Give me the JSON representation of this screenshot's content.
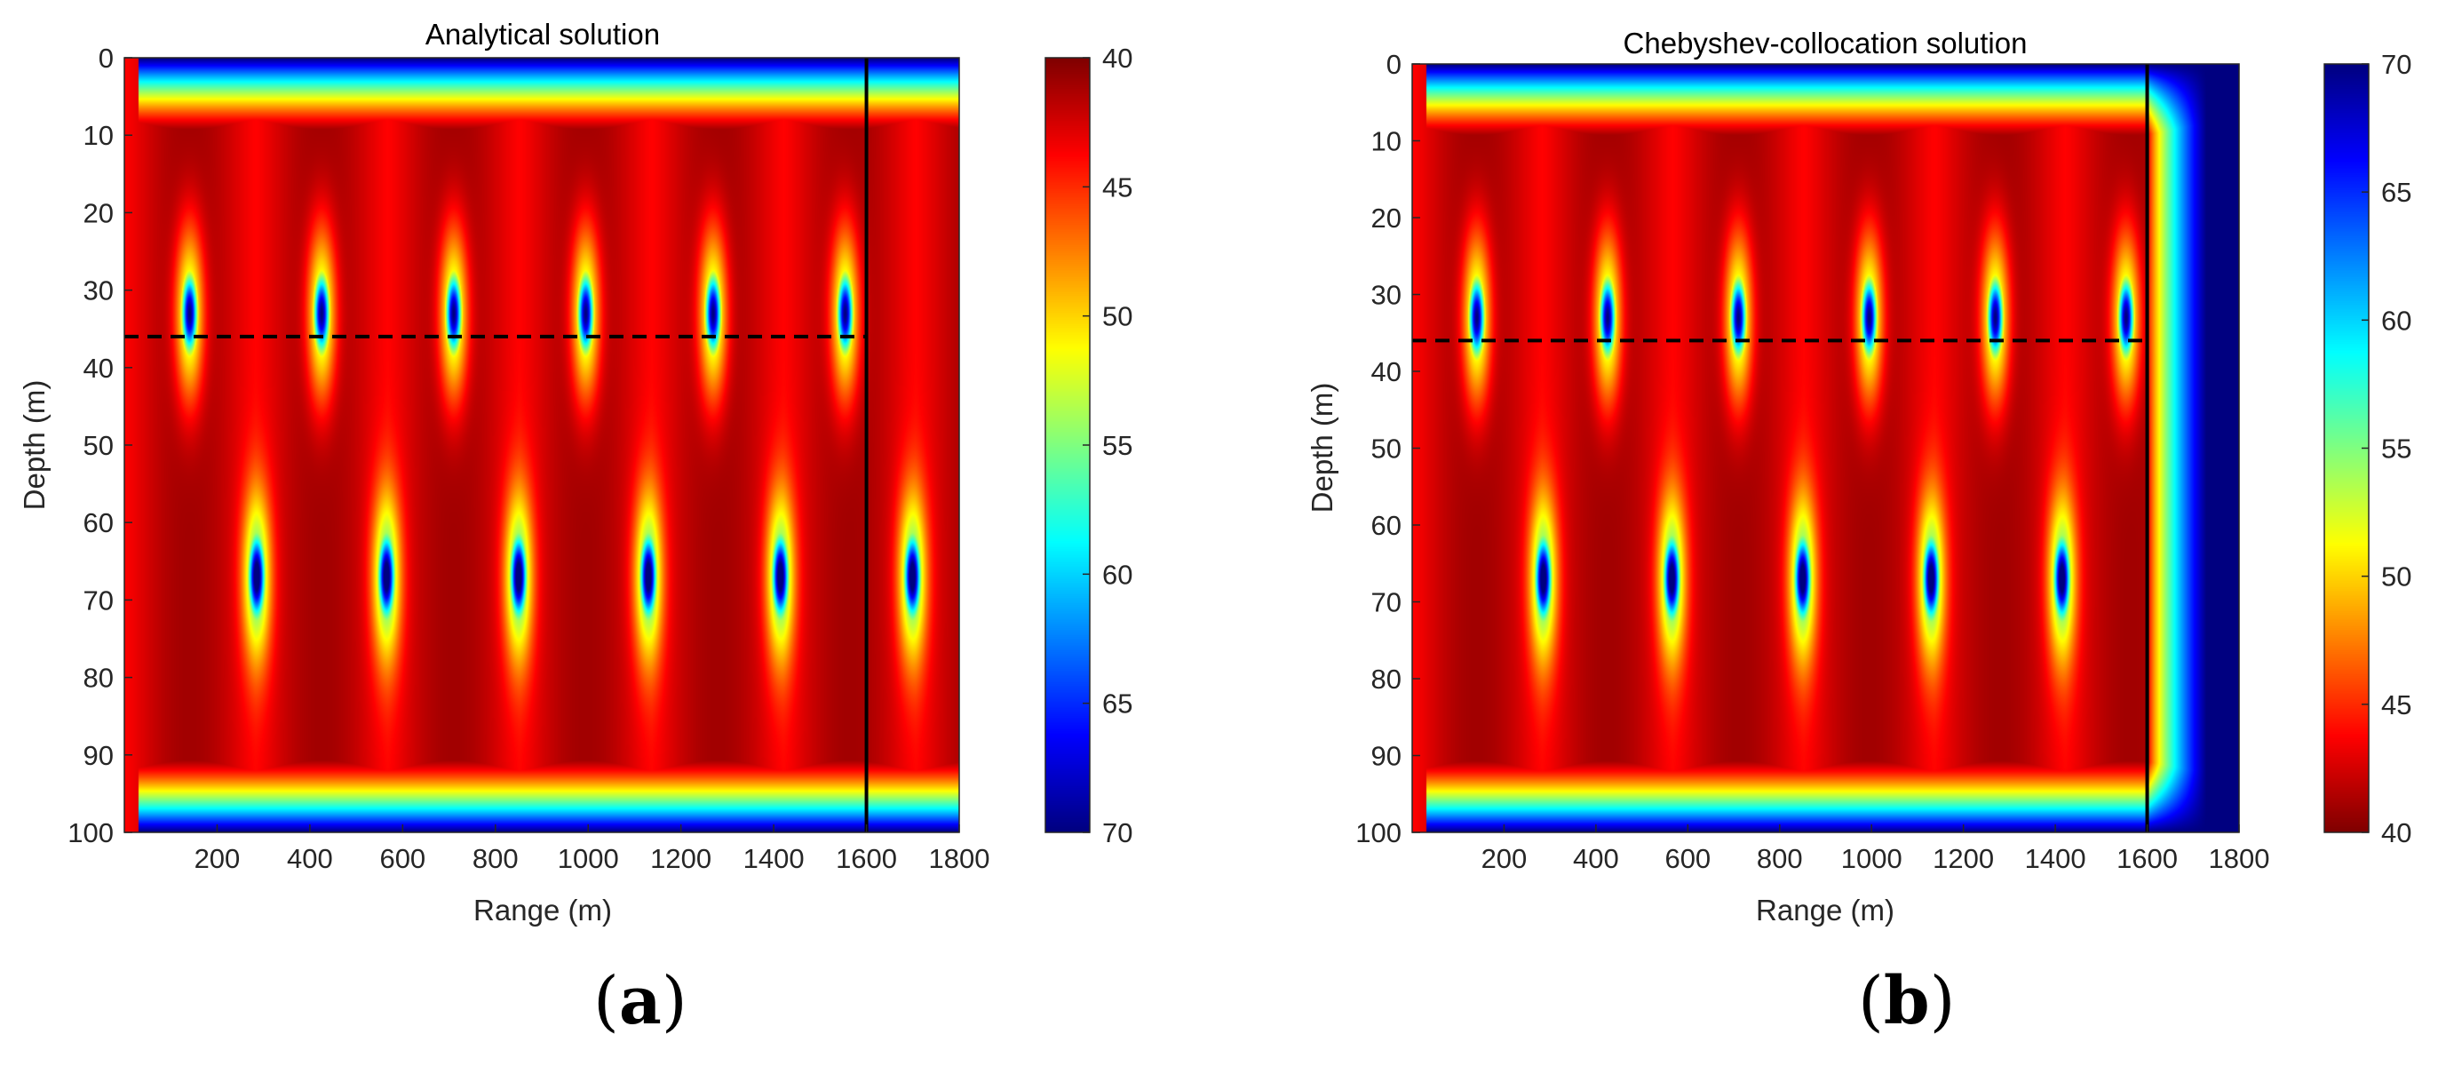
{
  "figure": {
    "panels": [
      {
        "label_open": "(",
        "letter": "a",
        "label_close": ")"
      },
      {
        "label_open": "(",
        "letter": "b",
        "label_close": ")"
      }
    ]
  },
  "colormap": "jet",
  "chart_data": [
    {
      "type": "heatmap",
      "title": "Analytical solution",
      "xlabel": "Range (m)",
      "ylabel": "Depth (m)",
      "xlim": [
        0,
        1800
      ],
      "ylim": [
        0,
        100
      ],
      "y_reversed": true,
      "x_ticks": [
        200,
        400,
        600,
        800,
        1000,
        1200,
        1400,
        1600,
        1800
      ],
      "y_ticks": [
        0,
        10,
        20,
        30,
        40,
        50,
        60,
        70,
        80,
        90,
        100
      ],
      "colorbar": {
        "ticks": [
          40,
          45,
          50,
          55,
          60,
          65,
          70
        ],
        "reversed_top_to_bottom": false,
        "top": 40,
        "bottom": 70
      },
      "lines": [
        {
          "style": "solid",
          "x": 1600,
          "y_range": [
            0,
            100
          ]
        },
        {
          "style": "dashed",
          "y": 36,
          "x_range": [
            0,
            1600
          ]
        }
      ],
      "field": {
        "source_depths": [
          33,
          67
        ],
        "null_ranges_shallow": [
          140,
          425,
          710,
          995,
          1270,
          1555
        ],
        "null_ranges_deep": [
          285,
          565,
          850,
          1130,
          1415,
          1700
        ],
        "pml_start": null
      }
    },
    {
      "type": "heatmap",
      "title": "Chebyshev-collocation solution",
      "xlabel": "Range (m)",
      "ylabel": "Depth (m)",
      "xlim": [
        0,
        1800
      ],
      "ylim": [
        0,
        100
      ],
      "y_reversed": true,
      "x_ticks": [
        200,
        400,
        600,
        800,
        1000,
        1200,
        1400,
        1600,
        1800
      ],
      "y_ticks": [
        0,
        10,
        20,
        30,
        40,
        50,
        60,
        70,
        80,
        90,
        100
      ],
      "colorbar": {
        "ticks": [
          45,
          50,
          55,
          60,
          65,
          70,
          40
        ],
        "reversed_top_to_bottom": true,
        "top": 70,
        "bottom": 40
      },
      "lines": [
        {
          "style": "solid",
          "x": 1600,
          "y_range": [
            0,
            100
          ]
        },
        {
          "style": "dashed",
          "y": 36,
          "x_range": [
            0,
            1600
          ]
        }
      ],
      "field": {
        "source_depths": [
          33,
          67
        ],
        "null_ranges_shallow": [
          140,
          425,
          710,
          995,
          1270,
          1555
        ],
        "null_ranges_deep": [
          285,
          565,
          850,
          1130,
          1415
        ],
        "pml_start": 1600
      }
    }
  ]
}
